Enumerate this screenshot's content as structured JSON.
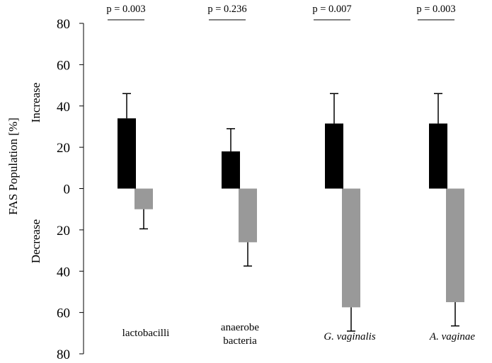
{
  "chart_data": {
    "type": "bar",
    "ylabel": "FAS Population [%]",
    "ylabel_increase": "Increase",
    "ylabel_decrease": "Decrease",
    "ylim": [
      -80,
      80
    ],
    "y_tick_values": [
      80,
      60,
      40,
      20,
      0,
      -20,
      -40,
      -60,
      -80
    ],
    "y_tick_labels": [
      "80",
      "60",
      "40",
      "20",
      "0",
      "20",
      "40",
      "60",
      "80"
    ],
    "categories": [
      {
        "lines": [
          "lactobacilli"
        ],
        "italic": false
      },
      {
        "lines": [
          "anaerobe",
          "bacteria"
        ],
        "italic": false
      },
      {
        "lines": [
          "G. vaginalis"
        ],
        "italic": true
      },
      {
        "lines": [
          "A. vaginae"
        ],
        "italic": true
      }
    ],
    "p_values": [
      "p = 0.003",
      "p = 0.236",
      "p = 0.007",
      "p = 0.003"
    ],
    "series": [
      {
        "color": "#000000",
        "values": [
          34,
          18,
          31.5,
          31.5
        ],
        "error": [
          12,
          11,
          14.5,
          14.5
        ]
      },
      {
        "color": "#999999",
        "values": [
          -10,
          -26,
          -57.5,
          -55
        ],
        "error": [
          9.5,
          11.5,
          11.5,
          11.5
        ]
      }
    ]
  }
}
